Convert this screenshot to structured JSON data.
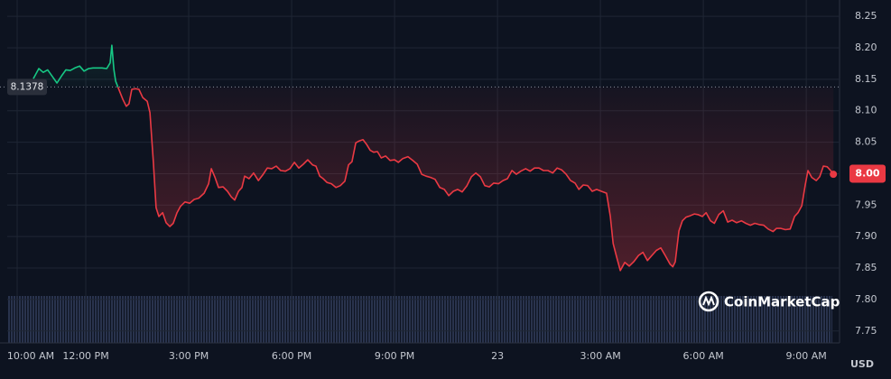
{
  "chart_data": {
    "type": "line",
    "x": [
      10.47,
      10.63,
      10.76,
      10.89,
      11.03,
      11.16,
      11.29,
      11.42,
      11.55,
      11.68,
      11.82,
      11.95,
      12.08,
      12.21,
      12.34,
      12.47,
      12.61,
      12.71,
      12.76,
      12.82,
      12.87,
      12.97,
      13.08,
      13.18,
      13.26,
      13.34,
      13.45,
      13.55,
      13.66,
      13.79,
      13.87,
      13.97,
      14.05,
      14.13,
      14.24,
      14.34,
      14.45,
      14.55,
      14.66,
      14.76,
      14.89,
      15.03,
      15.16,
      15.29,
      15.45,
      15.58,
      15.66,
      15.76,
      15.87,
      16.0,
      16.13,
      16.24,
      16.34,
      16.45,
      16.55,
      16.63,
      16.76,
      16.89,
      17.03,
      17.16,
      17.29,
      17.42,
      17.55,
      17.68,
      17.82,
      17.95,
      18.08,
      18.21,
      18.34,
      18.47,
      18.61,
      18.71,
      18.82,
      18.92,
      19.03,
      19.16,
      19.29,
      19.42,
      19.55,
      19.66,
      19.76,
      19.87,
      19.97,
      20.08,
      20.18,
      20.29,
      20.39,
      20.5,
      20.61,
      20.74,
      20.87,
      21.0,
      21.11,
      21.24,
      21.39,
      21.53,
      21.66,
      21.79,
      21.92,
      22.05,
      22.18,
      22.32,
      22.45,
      22.58,
      22.71,
      22.84,
      22.97,
      23.11,
      23.24,
      23.37,
      23.5,
      23.63,
      23.76,
      23.89,
      24.03,
      24.16,
      24.29,
      24.42,
      24.55,
      24.68,
      24.82,
      24.95,
      25.08,
      25.21,
      25.34,
      25.47,
      25.61,
      25.74,
      25.87,
      26.0,
      26.13,
      26.26,
      26.37,
      26.5,
      26.63,
      26.76,
      26.89,
      27.03,
      27.18,
      27.29,
      27.37,
      27.47,
      27.58,
      27.71,
      27.84,
      27.97,
      28.11,
      28.24,
      28.37,
      28.5,
      28.63,
      28.76,
      28.89,
      29.03,
      29.11,
      29.18,
      29.29,
      29.39,
      29.5,
      29.61,
      29.74,
      29.84,
      29.97,
      30.08,
      30.21,
      30.32,
      30.45,
      30.58,
      30.71,
      30.84,
      30.97,
      31.11,
      31.24,
      31.37,
      31.5,
      31.63,
      31.76,
      31.89,
      32.03,
      32.13,
      32.26,
      32.39,
      32.53,
      32.66,
      32.76,
      32.87,
      32.97,
      33.05,
      33.16,
      33.29,
      33.39,
      33.5,
      33.61,
      33.71,
      33.79
    ],
    "values": [
      8.151,
      8.167,
      8.161,
      8.165,
      8.154,
      8.144,
      8.155,
      8.165,
      8.164,
      8.168,
      8.171,
      8.163,
      8.167,
      8.168,
      8.168,
      8.168,
      8.167,
      8.176,
      8.204,
      8.165,
      8.147,
      8.133,
      8.118,
      8.107,
      8.111,
      8.134,
      8.135,
      8.134,
      8.121,
      8.115,
      8.097,
      8.018,
      7.946,
      7.932,
      7.938,
      7.922,
      7.916,
      7.921,
      7.938,
      7.948,
      7.955,
      7.953,
      7.959,
      7.961,
      7.969,
      7.984,
      8.008,
      7.995,
      7.978,
      7.979,
      7.972,
      7.963,
      7.958,
      7.972,
      7.978,
      7.996,
      7.992,
      8.001,
      7.989,
      7.998,
      8.009,
      8.008,
      8.012,
      8.005,
      8.004,
      8.008,
      8.018,
      8.009,
      8.015,
      8.022,
      8.014,
      8.012,
      7.996,
      7.992,
      7.986,
      7.984,
      7.978,
      7.981,
      7.988,
      8.014,
      8.019,
      8.049,
      8.052,
      8.054,
      8.047,
      8.037,
      8.034,
      8.035,
      8.025,
      8.028,
      8.021,
      8.022,
      8.018,
      8.024,
      8.027,
      8.021,
      8.015,
      7.999,
      7.996,
      7.994,
      7.991,
      7.978,
      7.975,
      7.965,
      7.972,
      7.975,
      7.971,
      7.981,
      7.995,
      8.001,
      7.995,
      7.981,
      7.979,
      7.985,
      7.984,
      7.989,
      7.992,
      8.005,
      7.999,
      8.004,
      8.008,
      8.004,
      8.009,
      8.009,
      8.005,
      8.005,
      8.001,
      8.009,
      8.006,
      7.999,
      7.989,
      7.985,
      7.975,
      7.982,
      7.981,
      7.972,
      7.975,
      7.972,
      7.969,
      7.932,
      7.889,
      7.868,
      7.846,
      7.859,
      7.853,
      7.86,
      7.87,
      7.875,
      7.862,
      7.87,
      7.878,
      7.882,
      7.87,
      7.856,
      7.852,
      7.86,
      7.909,
      7.925,
      7.931,
      7.933,
      7.936,
      7.935,
      7.932,
      7.938,
      7.925,
      7.921,
      7.935,
      7.941,
      7.923,
      7.926,
      7.922,
      7.925,
      7.921,
      7.918,
      7.921,
      7.919,
      7.918,
      7.912,
      7.908,
      7.913,
      7.913,
      7.911,
      7.912,
      7.932,
      7.938,
      7.949,
      7.982,
      8.005,
      7.994,
      7.989,
      7.995,
      8.012,
      8.011,
      8.005,
      7.999
    ],
    "baseline": 8.1378,
    "color_above": "#16c784",
    "color_below": "#ea3943",
    "last_price": {
      "value": 8,
      "label": "8.00"
    },
    "xlim": [
      9.71,
      33.97
    ],
    "xticks": [
      {
        "value": 10,
        "label": "10:00 AM"
      },
      {
        "value": 12,
        "label": "12:00 PM"
      },
      {
        "value": 15,
        "label": "3:00 PM"
      },
      {
        "value": 18,
        "label": "6:00 PM"
      },
      {
        "value": 21,
        "label": "9:00 PM"
      },
      {
        "value": 24,
        "label": "23"
      },
      {
        "value": 27,
        "label": "3:00 AM"
      },
      {
        "value": 30,
        "label": "6:00 AM"
      },
      {
        "value": 33,
        "label": "9:00 AM"
      }
    ],
    "ylim": [
      7.731,
      8.276
    ],
    "yticks": [
      7.75,
      {
        "value": 7.8,
        "label": "7.80"
      },
      7.85,
      {
        "value": 7.9,
        "label": "7.90"
      },
      7.95,
      {
        "value": 8,
        "label": "8.00"
      },
      8.05,
      {
        "value": 8.1,
        "label": "8.10"
      },
      8.15,
      {
        "value": 8.2,
        "label": "8.20"
      },
      8.25
    ],
    "grid": true,
    "currency": "USD",
    "watermark": "CoinMarketCap"
  }
}
